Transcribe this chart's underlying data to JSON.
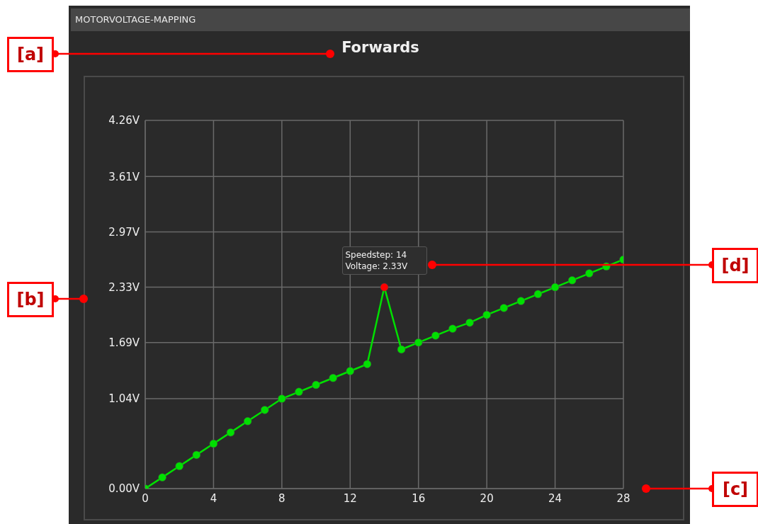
{
  "chart_data": {
    "type": "line",
    "title": "Forwards",
    "subtitle": "MOTORVOLTAGE-MAPPING",
    "x": [
      0,
      1,
      2,
      3,
      4,
      5,
      6,
      7,
      8,
      9,
      10,
      11,
      12,
      13,
      14,
      15,
      16,
      17,
      18,
      19,
      20,
      21,
      22,
      23,
      24,
      25,
      26,
      27,
      28
    ],
    "series": [
      {
        "color": "#00e000",
        "values": [
          0,
          0.13,
          0.26,
          0.39,
          0.52,
          0.65,
          0.78,
          0.91,
          1.04,
          1.12,
          1.2,
          1.28,
          1.36,
          1.44,
          2.33,
          1.61,
          1.69,
          1.77,
          1.85,
          1.92,
          2.01,
          2.09,
          2.17,
          2.25,
          2.33,
          2.41,
          2.49,
          2.57,
          2.65
        ],
        "colors": [
          "#00e000",
          "#00e000",
          "#00e000",
          "#00e000",
          "#00e000",
          "#00e000",
          "#00e000",
          "#00e000",
          "#00e000",
          "#00e000",
          "#00e000",
          "#00e000",
          "#00e000",
          "#00e000",
          "#ff0000",
          "#00e000",
          "#00e000",
          "#00e000",
          "#00e000",
          "#00e000",
          "#00e000",
          "#00e000",
          "#00e000",
          "#00e000",
          "#00e000",
          "#00e000",
          "#00e000",
          "#00e000",
          "#00e000"
        ]
      }
    ],
    "xlim": [
      0,
      28
    ],
    "xticks": [
      0,
      4,
      8,
      12,
      16,
      20,
      24,
      28
    ],
    "ylim": [
      0,
      4.26
    ],
    "yticks": [
      {
        "value": 0,
        "label": "0.00V"
      },
      {
        "value": 1.04,
        "label": "1.04V"
      },
      {
        "value": 1.69,
        "label": "1.69V"
      },
      {
        "value": 2.33,
        "label": "2.33V"
      },
      {
        "value": 2.97,
        "label": "2.97V"
      },
      {
        "value": 3.61,
        "label": "3.61V"
      },
      {
        "value": 4.26,
        "label": "4.26V"
      }
    ],
    "grid": true,
    "marker": "circle",
    "line_style": "solid",
    "annotations": [
      {
        "text": "Speedstep: 14\nVoltage: 2.33V",
        "x": 14,
        "y": 2.33
      },
      "[a]",
      "[b]",
      "[c]",
      "[d]"
    ]
  }
}
